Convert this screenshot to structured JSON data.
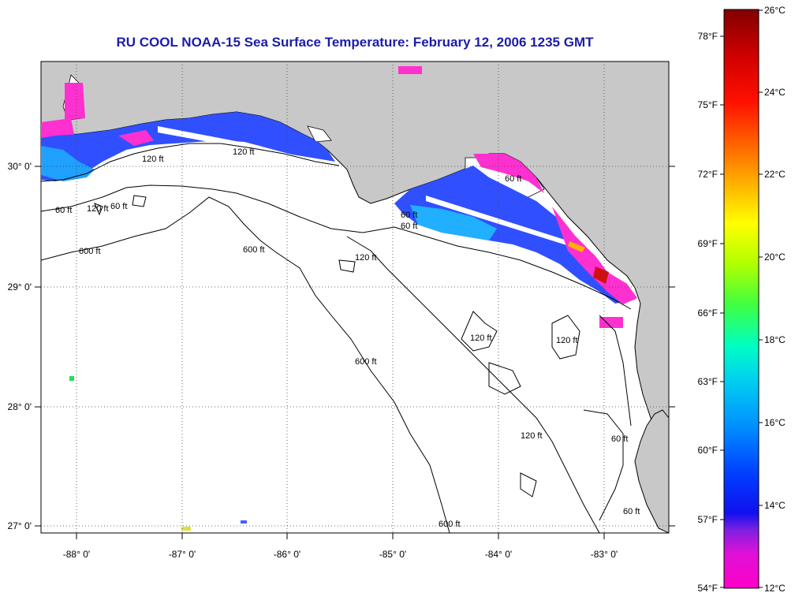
{
  "title": "RU COOL  NOAA-15  Sea Surface Temperature:  February 12, 2006 1235 GMT",
  "map": {
    "lon_ticks": [
      "-88° 0'",
      "-87° 0'",
      "-86° 0'",
      "-85° 0'",
      "-84° 0'",
      "-83° 0'"
    ],
    "lat_ticks": [
      "30° 0'",
      "29° 0'",
      "28° 0'",
      "27° 0'"
    ],
    "contour_labels": [
      "120 ft",
      "120 ft",
      "120 ft",
      "60 ft",
      "60 ft",
      "60 ft",
      "60 ft",
      "600 ft",
      "600 ft",
      "600 ft",
      "600 ft",
      "120 ft",
      "120 ft",
      "120 ft",
      "120 ft",
      "60 ft",
      "60 ft",
      "60 ft"
    ],
    "colors": {
      "land": "#c8c8c8",
      "water": "#ffffff",
      "contour": "#000000",
      "grid": "#404040"
    }
  },
  "colorbar": {
    "fahrenheit_labels": [
      "78°F",
      "75°F",
      "72°F",
      "69°F",
      "66°F",
      "63°F",
      "60°F",
      "57°F",
      "54°F"
    ],
    "celsius_labels": [
      "26°C",
      "24°C",
      "22°C",
      "20°C",
      "18°C",
      "16°C",
      "14°C",
      "12°C"
    ],
    "gradient": [
      "#ff00c8",
      "#c020e0",
      "#5a20e0",
      "#0000ff",
      "#0070ff",
      "#00c8ff",
      "#00ffd0",
      "#30ff50",
      "#a0ff00",
      "#ffff00",
      "#ffb000",
      "#ff6000",
      "#ff0000",
      "#d00000",
      "#800000"
    ]
  }
}
